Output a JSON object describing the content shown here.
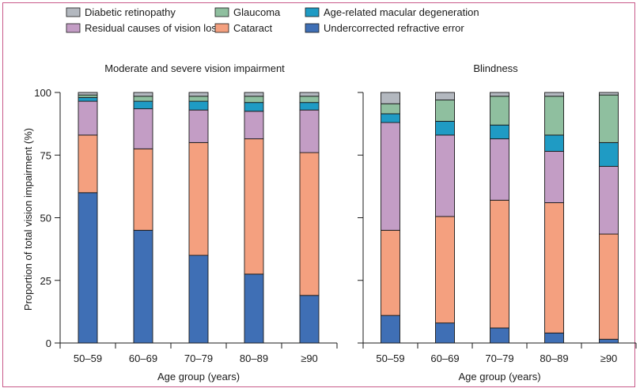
{
  "colors": {
    "Diabetic retinopathy": "#b3b8bf",
    "Glaucoma": "#8fbf9f",
    "Age-related macular degeneration": "#1f9bc4",
    "Residual causes of vision loss": "#c39dc5",
    "Cataract": "#f4a07f",
    "Undercorrected refractive error": "#3f6fb5",
    "frame": "#c85a8a",
    "axis": "#1a1a1a"
  },
  "legend": [
    "Diabetic retinopathy",
    "Glaucoma",
    "Age-related macular degeneration",
    "Residual causes of vision loss",
    "Cataract",
    "Undercorrected refractive error"
  ],
  "chart_data": [
    {
      "type": "bar",
      "stacked": true,
      "title": "Moderate and severe vision impairment",
      "xlabel": "Age group (years)",
      "ylabel": "Proportion of total vision impairment (%)",
      "ylim": [
        0,
        100
      ],
      "yticks": [
        0,
        25,
        50,
        75,
        100
      ],
      "categories": [
        "50–59",
        "60–69",
        "70–79",
        "80–89",
        "≥90"
      ],
      "series": [
        {
          "name": "Undercorrected refractive error",
          "values": [
            60,
            45,
            35,
            27.5,
            19
          ]
        },
        {
          "name": "Cataract",
          "values": [
            23,
            32.5,
            45,
            54,
            57
          ]
        },
        {
          "name": "Residual causes of vision loss",
          "values": [
            13.5,
            16,
            13,
            11,
            17
          ]
        },
        {
          "name": "Age-related macular degeneration",
          "values": [
            1.5,
            3,
            3.5,
            3.5,
            3
          ]
        },
        {
          "name": "Glaucoma",
          "values": [
            1,
            2,
            2,
            2.5,
            2.5
          ]
        },
        {
          "name": "Diabetic retinopathy",
          "values": [
            1,
            1.5,
            1.5,
            1.5,
            1.5
          ]
        }
      ]
    },
    {
      "type": "bar",
      "stacked": true,
      "title": "Blindness",
      "xlabel": "Age group (years)",
      "ylim": [
        0,
        100
      ],
      "categories": [
        "50–59",
        "60–69",
        "70–79",
        "80–89",
        "≥90"
      ],
      "series": [
        {
          "name": "Undercorrected refractive error",
          "values": [
            11,
            8,
            6,
            4,
            1.5
          ]
        },
        {
          "name": "Cataract",
          "values": [
            34,
            42.5,
            51,
            52,
            42
          ]
        },
        {
          "name": "Residual causes of vision loss",
          "values": [
            43,
            32.5,
            24.5,
            20.5,
            27
          ]
        },
        {
          "name": "Age-related macular degeneration",
          "values": [
            3.5,
            5.5,
            5.5,
            6.5,
            9.5
          ]
        },
        {
          "name": "Glaucoma",
          "values": [
            4,
            8.5,
            11.5,
            15.5,
            19
          ]
        },
        {
          "name": "Diabetic retinopathy",
          "values": [
            4.5,
            3,
            1.5,
            1.5,
            1
          ]
        }
      ]
    }
  ]
}
